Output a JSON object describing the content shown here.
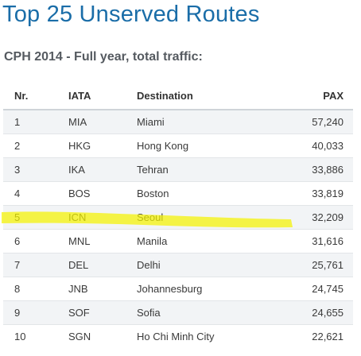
{
  "title": "Top 25 Unserved Routes",
  "subtitle": "CPH 2014 - Full year, total traffic:",
  "table": {
    "headers": {
      "nr": "Nr.",
      "iata": "IATA",
      "destination": "Destination",
      "pax": "PAX"
    },
    "rows": [
      {
        "nr": "1",
        "iata": "MIA",
        "destination": "Miami",
        "pax": "57,240"
      },
      {
        "nr": "2",
        "iata": "HKG",
        "destination": "Hong Kong",
        "pax": "40,033"
      },
      {
        "nr": "3",
        "iata": "IKA",
        "destination": "Tehran",
        "pax": "33,886"
      },
      {
        "nr": "4",
        "iata": "BOS",
        "destination": "Boston",
        "pax": "33,819"
      },
      {
        "nr": "5",
        "iata": "ICN",
        "destination": "Seoul",
        "pax": "32,209"
      },
      {
        "nr": "6",
        "iata": "MNL",
        "destination": "Manila",
        "pax": "31,616"
      },
      {
        "nr": "7",
        "iata": "DEL",
        "destination": "Delhi",
        "pax": "25,761"
      },
      {
        "nr": "8",
        "iata": "JNB",
        "destination": "Johannesburg",
        "pax": "24,745"
      },
      {
        "nr": "9",
        "iata": "SOF",
        "destination": "Sofia",
        "pax": "24,655"
      },
      {
        "nr": "10",
        "iata": "SGN",
        "destination": "Ho Chi Minh City",
        "pax": "22,621"
      }
    ]
  },
  "highlight": {
    "row_nr": "5",
    "color": "#f4f200"
  },
  "colors": {
    "title": "#1a6da8",
    "stripe": "#f2f4f6"
  }
}
